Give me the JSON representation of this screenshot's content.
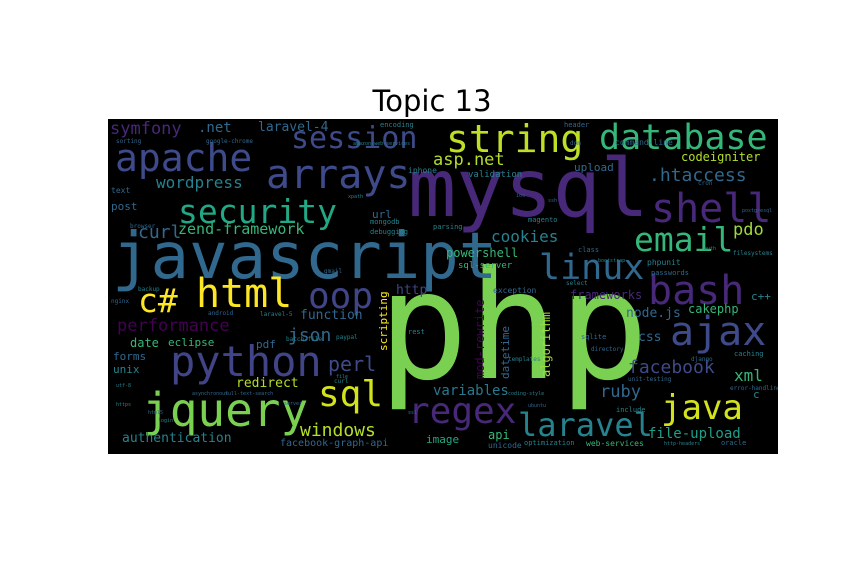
{
  "title": "Topic 13",
  "words": [
    {
      "id": "php",
      "text": "php",
      "color": "#7ad151"
    },
    {
      "id": "mysql",
      "text": "mysql",
      "color": "#482878"
    },
    {
      "id": "javascript",
      "text": "javascript",
      "color": "#31688e"
    },
    {
      "id": "jquery",
      "text": "jquery",
      "color": "#7ad151"
    },
    {
      "id": "apache",
      "text": "apache",
      "color": "#3e4a89"
    },
    {
      "id": "session",
      "text": "session",
      "color": "#3e4a89"
    },
    {
      "id": "database",
      "text": "database",
      "color": "#35b779"
    },
    {
      "id": "string",
      "text": "string",
      "color": "#bddf26"
    },
    {
      "id": "arrays",
      "text": "arrays",
      "color": "#3e4a89"
    },
    {
      "id": "security",
      "text": "security",
      "color": "#22a884"
    },
    {
      "id": "html",
      "text": "html",
      "color": "#fde725"
    },
    {
      "id": "python",
      "text": "python",
      "color": "#414487"
    },
    {
      "id": "email",
      "text": "email",
      "color": "#35b779"
    },
    {
      "id": "shell",
      "text": "shell",
      "color": "#482878"
    },
    {
      "id": "bash",
      "text": "bash",
      "color": "#482878"
    },
    {
      "id": "ajax",
      "text": "ajax",
      "color": "#3e4a89"
    },
    {
      "id": "linux",
      "text": "linux",
      "color": "#31688e"
    },
    {
      "id": "regex",
      "text": "regex",
      "color": "#482878"
    },
    {
      "id": "laravel",
      "text": "laravel",
      "color": "#26828e"
    },
    {
      "id": "java",
      "text": "java",
      "color": "#d2e21b"
    },
    {
      "id": "sql",
      "text": "sql",
      "color": "#d2e21b"
    },
    {
      "id": "csharp",
      "text": "c#",
      "color": "#fde725"
    },
    {
      "id": "oop",
      "text": "oop",
      "color": "#414487"
    },
    {
      "id": "wordpress",
      "text": "wordpress",
      "color": "#26828e"
    },
    {
      "id": "zend-framework",
      "text": "zend-framework",
      "color": "#35b779"
    },
    {
      "id": "performance",
      "text": "performance",
      "color": "#440154"
    },
    {
      "id": "symfony",
      "text": "symfony",
      "color": "#482878"
    },
    {
      "id": "dotnet",
      "text": ".net",
      "color": "#31688e"
    },
    {
      "id": "laravel-4",
      "text": "laravel-4",
      "color": "#31688e"
    },
    {
      "id": "curl",
      "text": "curl",
      "color": "#31688e"
    },
    {
      "id": "aspnet",
      "text": "asp.net",
      "color": "#b5de2b"
    },
    {
      "id": "htaccess",
      "text": ".htaccess",
      "color": "#31688e"
    },
    {
      "id": "codeigniter",
      "text": "codeigniter",
      "color": "#b5de2b"
    },
    {
      "id": "pdo",
      "text": "pdo",
      "color": "#a0da39"
    },
    {
      "id": "cookies",
      "text": "cookies",
      "color": "#26828e"
    },
    {
      "id": "powershell",
      "text": "powershell",
      "color": "#35b779"
    },
    {
      "id": "json",
      "text": "json",
      "color": "#31688e"
    },
    {
      "id": "perl",
      "text": "perl",
      "color": "#3e4a89"
    },
    {
      "id": "windows",
      "text": "windows",
      "color": "#b5de2b"
    },
    {
      "id": "facebook",
      "text": "facebook",
      "color": "#3e4a89"
    },
    {
      "id": "ruby",
      "text": "ruby",
      "color": "#31688e"
    },
    {
      "id": "xml",
      "text": "xml",
      "color": "#35b779"
    },
    {
      "id": "file-upload",
      "text": "file-upload",
      "color": "#1f9e89"
    },
    {
      "id": "authentication",
      "text": "authentication",
      "color": "#26828e"
    },
    {
      "id": "facebook-graph-api",
      "text": "facebook-graph-api",
      "color": "#31688e"
    },
    {
      "id": "redirect",
      "text": "redirect",
      "color": "#b5de2b"
    },
    {
      "id": "variables",
      "text": "variables",
      "color": "#2a788e"
    },
    {
      "id": "function",
      "text": "function",
      "color": "#31688e"
    },
    {
      "id": "http",
      "text": "http",
      "color": "#414487"
    },
    {
      "id": "frameworks",
      "text": "frameworks",
      "color": "#482878"
    },
    {
      "id": "nodejs",
      "text": "node.js",
      "color": "#31688e"
    },
    {
      "id": "cakephp",
      "text": "cakephp",
      "color": "#35b779"
    },
    {
      "id": "css",
      "text": "css",
      "color": "#31688e"
    },
    {
      "id": "cpp",
      "text": "c++",
      "color": "#26828e"
    },
    {
      "id": "date",
      "text": "date",
      "color": "#35b779"
    },
    {
      "id": "eclipse",
      "text": "eclipse",
      "color": "#35b779"
    },
    {
      "id": "pdf",
      "text": "pdf",
      "color": "#31688e"
    },
    {
      "id": "forms",
      "text": "forms",
      "color": "#31688e"
    },
    {
      "id": "unix",
      "text": "unix",
      "color": "#26828e"
    },
    {
      "id": "image",
      "text": "image",
      "color": "#22a884"
    },
    {
      "id": "api",
      "text": "api",
      "color": "#35b779"
    },
    {
      "id": "url",
      "text": "url",
      "color": "#31688e"
    },
    {
      "id": "upload",
      "text": "upload",
      "color": "#31688e"
    },
    {
      "id": "iphone",
      "text": "iphone",
      "color": "#26828e"
    },
    {
      "id": "validation",
      "text": "validation",
      "color": "#26828e"
    },
    {
      "id": "post",
      "text": "post",
      "color": "#31688e"
    },
    {
      "id": "c",
      "text": "c",
      "color": "#26828e"
    },
    {
      "id": "scripting",
      "text": "scripting",
      "color": "#fde725"
    },
    {
      "id": "mod-rewrite",
      "text": "mod-rewrite",
      "color": "#440154"
    },
    {
      "id": "algorithm",
      "text": "algorithm",
      "color": "#a0da39"
    },
    {
      "id": "datetime",
      "text": "datetime",
      "color": "#31688e"
    },
    {
      "id": "sql-server",
      "text": "sql-server",
      "color": "#35b779"
    },
    {
      "id": "command-line",
      "text": "command-line",
      "color": "#31688e"
    },
    {
      "id": "magento",
      "text": "magento",
      "color": "#26828e"
    },
    {
      "id": "parsing",
      "text": "parsing",
      "color": "#26828e"
    },
    {
      "id": "exception",
      "text": "exception",
      "color": "#31688e"
    },
    {
      "id": "mongodb",
      "text": "mongodb",
      "color": "#26828e"
    },
    {
      "id": "debugging",
      "text": "debugging",
      "color": "#26828e"
    },
    {
      "id": "web-services",
      "text": "web-services",
      "color": "#35b779"
    },
    {
      "id": "unicode",
      "text": "unicode",
      "color": "#31688e"
    },
    {
      "id": "optimization",
      "text": "optimization",
      "color": "#26828e"
    },
    {
      "id": "text",
      "text": "text",
      "color": "#31688e"
    },
    {
      "id": "encoding",
      "text": "encoding",
      "color": "#26828e"
    },
    {
      "id": "header",
      "text": "header",
      "color": "#31688e"
    },
    {
      "id": "class",
      "text": "class",
      "color": "#31688e"
    },
    {
      "id": "phpunit",
      "text": "phpunit",
      "color": "#26828e"
    },
    {
      "id": "passwords",
      "text": "passwords",
      "color": "#31688e"
    },
    {
      "id": "templates",
      "text": "templates",
      "color": "#26828e"
    },
    {
      "id": "rest",
      "text": "rest",
      "color": "#26828e"
    },
    {
      "id": "sqlite",
      "text": "sqlite",
      "color": "#31688e"
    },
    {
      "id": "caching",
      "text": "caching",
      "color": "#26828e"
    },
    {
      "id": "include",
      "text": "include",
      "color": "#26828e"
    },
    {
      "id": "oracle",
      "text": "oracle",
      "color": "#31688e"
    },
    {
      "id": "batch-file",
      "text": "batch-file",
      "color": "#26828e"
    },
    {
      "id": "android",
      "text": "android",
      "color": "#31688e"
    },
    {
      "id": "laravel-5",
      "text": "laravel-5",
      "color": "#26828e"
    },
    {
      "id": "google-chrome",
      "text": "google-chrome",
      "color": "#31688e"
    },
    {
      "id": "amazon-web-services",
      "text": "amazon-web-services",
      "color": "#26828e"
    },
    {
      "id": "sorting",
      "text": "sorting",
      "color": "#31688e"
    },
    {
      "id": "error-handling",
      "text": "error-handling",
      "color": "#31688e"
    },
    {
      "id": "unit-testing",
      "text": "unit-testing",
      "color": "#31688e"
    },
    {
      "id": "http-headers",
      "text": "http-headers",
      "color": "#26828e"
    },
    {
      "id": "directory",
      "text": "directory",
      "color": "#31688e"
    },
    {
      "id": "filesystems",
      "text": "filesystems",
      "color": "#26828e"
    },
    {
      "id": "cron",
      "text": "cron",
      "color": "#31688e"
    },
    {
      "id": "browser",
      "text": "browser",
      "color": "#31688e"
    },
    {
      "id": "backup",
      "text": "backup",
      "color": "#26828e"
    },
    {
      "id": "nginx",
      "text": "nginx",
      "color": "#31688e"
    },
    {
      "id": "paypal",
      "text": "paypal",
      "color": "#26828e"
    },
    {
      "id": "gmail",
      "text": "gmail",
      "color": "#31688e"
    },
    {
      "id": "curl-lower",
      "text": "curl",
      "color": "#26828e"
    },
    {
      "id": "dom",
      "text": "dom",
      "color": "#31688e"
    },
    {
      "id": "select",
      "text": "select",
      "color": "#26828e"
    },
    {
      "id": "coding-style",
      "text": "coding-style",
      "color": "#26828e"
    },
    {
      "id": "django",
      "text": "django",
      "color": "#31688e"
    },
    {
      "id": "ubuntu",
      "text": "ubuntu",
      "color": "#31688e"
    },
    {
      "id": "login",
      "text": "login",
      "color": "#26828e"
    },
    {
      "id": "file",
      "text": "file",
      "color": "#26828e"
    },
    {
      "id": "asynchronous",
      "text": "asynchronous",
      "color": "#31688e"
    },
    {
      "id": "full-text-search",
      "text": "full-text-search",
      "color": "#31688e"
    },
    {
      "id": "postgresql",
      "text": "postgresql",
      "color": "#31688e"
    },
    {
      "id": "ssl",
      "text": "ssl",
      "color": "#26828e"
    },
    {
      "id": "html5",
      "text": "html5",
      "color": "#31688e"
    },
    {
      "id": "utf-8",
      "text": "utf-8",
      "color": "#26828e"
    },
    {
      "id": "smtp",
      "text": "smtp",
      "color": "#31688e"
    },
    {
      "id": "bootstrap",
      "text": "bootstrap",
      "color": "#26828e"
    },
    {
      "id": "ios",
      "text": "ios",
      "color": "#31688e"
    },
    {
      "id": "https",
      "text": "https",
      "color": "#26828e"
    },
    {
      "id": "server",
      "text": "server",
      "color": "#31688e"
    },
    {
      "id": "xpath",
      "text": "xpath",
      "color": "#26828e"
    },
    {
      "id": "ssh",
      "text": "ssh",
      "color": "#31688e"
    },
    {
      "id": "auth",
      "text": "auth",
      "color": "#26828e"
    }
  ]
}
